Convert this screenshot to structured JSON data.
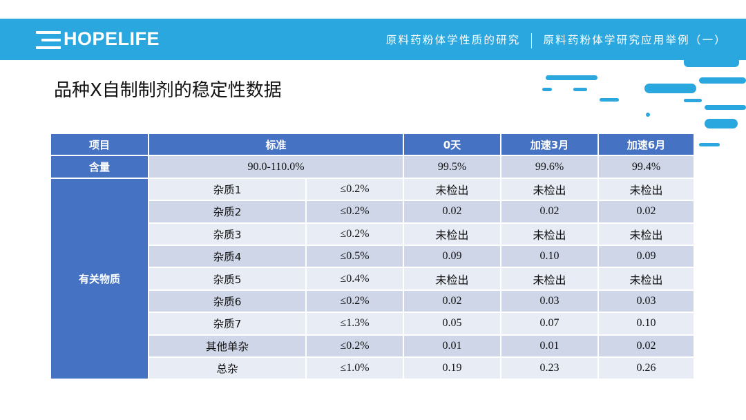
{
  "header": {
    "logo": "HOPELIFE",
    "nav_left": "原料药粉体学性质的研究",
    "nav_right": "原料药粉体学研究应用举例（一）"
  },
  "title": "品种X自制制剂的稳定性数据",
  "table": {
    "headers": [
      "项目",
      "标准",
      "0天",
      "加速3月",
      "加速6月"
    ],
    "content": {
      "label": "含量",
      "standard": "90.0-110.0%",
      "values": [
        "99.5%",
        "99.6%",
        "99.4%"
      ]
    },
    "group_label": "有关物质",
    "rows": [
      {
        "name": "杂质1",
        "limit": "≤0.2%",
        "values": [
          "未检出",
          "未检出",
          "未检出"
        ]
      },
      {
        "name": "杂质2",
        "limit": "≤0.2%",
        "values": [
          "0.02",
          "0.02",
          "0.02"
        ]
      },
      {
        "name": "杂质3",
        "limit": "≤0.2%",
        "values": [
          "未检出",
          "未检出",
          "未检出"
        ]
      },
      {
        "name": "杂质4",
        "limit": "≤0.5%",
        "values": [
          "0.09",
          "0.10",
          "0.09"
        ]
      },
      {
        "name": "杂质5",
        "limit": "≤0.4%",
        "values": [
          "未检出",
          "未检出",
          "未检出"
        ]
      },
      {
        "name": "杂质6",
        "limit": "≤0.2%",
        "values": [
          "0.02",
          "0.03",
          "0.03"
        ]
      },
      {
        "name": "杂质7",
        "limit": "≤1.3%",
        "values": [
          "0.05",
          "0.07",
          "0.10"
        ]
      },
      {
        "name": "其他单杂",
        "limit": "≤0.2%",
        "values": [
          "0.01",
          "0.01",
          "0.02"
        ]
      },
      {
        "name": "总杂",
        "limit": "≤1.0%",
        "values": [
          "0.19",
          "0.23",
          "0.26"
        ]
      }
    ]
  },
  "colors": {
    "banner": "#2aa7df",
    "header_cell": "#4672c4",
    "row_dark": "#cfd6e8",
    "row_light": "#e8ecf5"
  }
}
